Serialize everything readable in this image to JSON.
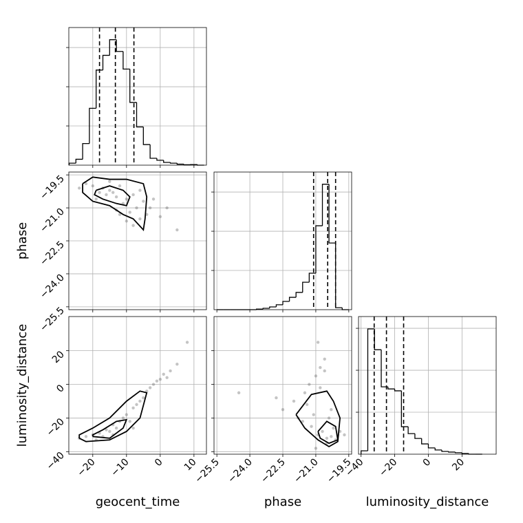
{
  "chart_data": [
    {
      "type": "histogram",
      "color": "#000000",
      "grid": true,
      "bins": [
        -27,
        -25,
        -23,
        -21,
        -19,
        -17,
        -15,
        -13,
        -11,
        -9,
        -7,
        -5,
        -3,
        -1,
        1,
        3,
        5,
        7,
        9,
        11,
        13
      ],
      "counts": [
        10,
        30,
        110,
        290,
        485,
        560,
        640,
        580,
        490,
        320,
        195,
        105,
        35,
        25,
        14,
        10,
        5,
        2,
        3,
        0
      ],
      "quantiles": [
        -18.0,
        -13.3,
        -7.8
      ],
      "xlim": [
        -27.1,
        13.7
      ],
      "xticks": [
        -20,
        -10,
        0,
        10
      ],
      "ylim": [
        0,
        702
      ],
      "yticks": [
        200,
        400,
        600
      ]
    },
    {
      "type": "histogram",
      "color": "#000000",
      "grid": true,
      "bins": [
        -25.5,
        -25.2,
        -24.9,
        -24.6,
        -24.3,
        -24.0,
        -23.7,
        -23.4,
        -23.1,
        -22.8,
        -22.5,
        -22.2,
        -21.9,
        -21.6,
        -21.3,
        -21.0,
        -20.7,
        -20.4,
        -20.1,
        -19.8,
        -19.5
      ],
      "counts": [
        0,
        0,
        0,
        0,
        0,
        0,
        3,
        7,
        14,
        25,
        42,
        63,
        88,
        140,
        186,
        428,
        640,
        340,
        10,
        0
      ],
      "quantiles": [
        -21.1,
        -20.46,
        -20.1
      ],
      "xlim": [
        -25.63,
        -19.37
      ],
      "xticks": [
        -25.5,
        -24.0,
        -22.5,
        -21.0,
        -19.5
      ],
      "ylim": [
        0,
        702
      ],
      "yticks": [
        200,
        400,
        600
      ]
    },
    {
      "type": "histogram",
      "color": "#000000",
      "grid": true,
      "show_xticklabels": true,
      "xlabel": "luminosity_distance",
      "bins": [
        -40,
        -36,
        -32,
        -28,
        -24,
        -20,
        -16,
        -12,
        -8,
        -4,
        0,
        4,
        8,
        12,
        16,
        20,
        24,
        28,
        32
      ],
      "counts": [
        16,
        597,
        498,
        321,
        311,
        302,
        131,
        98,
        75,
        49,
        30,
        20,
        13,
        10,
        7,
        3,
        0,
        0
      ],
      "quantiles": [
        -32.2,
        -24.9,
        -14.7
      ],
      "xlim": [
        -41.5,
        40.3
      ],
      "xticks": [
        {
          "value": -40,
          "label": "−40"
        },
        {
          "value": -20,
          "label": "−20"
        },
        0,
        20
      ],
      "ylim": [
        0,
        656
      ],
      "yticks": [
        200,
        400,
        600
      ]
    },
    {
      "type": "scatter",
      "color": "#000000",
      "grid": true,
      "show_yticklabels": true,
      "ylabel": "phase",
      "x": [
        -22,
        -20,
        -18,
        -17,
        -16,
        -15,
        -14,
        -13,
        -12,
        -11,
        -10,
        -9,
        -8,
        -7,
        -6,
        -5,
        -4,
        -3,
        -2,
        0,
        2,
        -19,
        -13,
        -10,
        -15,
        -8,
        -6,
        5,
        -24,
        -12
      ],
      "y": [
        -19.9,
        -20.0,
        -20.3,
        -20.1,
        -20.4,
        -20.2,
        -20.3,
        -20.5,
        -20.0,
        -20.8,
        -20.6,
        -21.2,
        -20.4,
        -21.0,
        -21.5,
        -20.7,
        -21.3,
        -21.0,
        -20.6,
        -21.4,
        -21.0,
        -20.6,
        -21.1,
        -21.6,
        -19.8,
        -21.8,
        -20.2,
        -22.0,
        -20.1,
        -21.3
      ],
      "contours": [
        {
          "x": [
            -23,
            -20,
            -15,
            -10,
            -5,
            -4,
            -4.5,
            -5,
            -8,
            -11,
            -15,
            -20,
            -23,
            -23
          ],
          "y": [
            -19.9,
            -19.6,
            -19.7,
            -19.7,
            -19.9,
            -20.5,
            -21.5,
            -22.0,
            -21.5,
            -21.3,
            -20.9,
            -20.7,
            -20.3,
            -19.9
          ]
        },
        {
          "x": [
            -19,
            -15,
            -11,
            -9,
            -10,
            -13,
            -17,
            -19.5,
            -19
          ],
          "y": [
            -20.2,
            -20.0,
            -20.2,
            -20.5,
            -20.9,
            -20.8,
            -20.6,
            -20.4,
            -20.2
          ]
        }
      ],
      "xlim": [
        -27.1,
        13.7
      ],
      "xticks": [
        -20,
        -10,
        0,
        10
      ],
      "ylim": [
        -25.63,
        -19.37
      ],
      "yticks": [
        {
          "value": -19.5,
          "label": "−19.5"
        },
        {
          "value": -21.0,
          "label": "−21.0"
        },
        {
          "value": -22.5,
          "label": "−22.5"
        },
        {
          "value": -24.0,
          "label": "−24.0"
        },
        {
          "value": -25.5,
          "label": "−25.5"
        }
      ]
    },
    {
      "type": "scatter",
      "color": "#000000",
      "grid": true,
      "show_xticklabels": true,
      "show_yticklabels": true,
      "xlabel": "geocent_time",
      "ylabel": "luminosity_distance",
      "x": [
        -24,
        -22,
        -20,
        -19,
        -18,
        -17,
        -16,
        -15,
        -14,
        -13,
        -12,
        -11,
        -10,
        -9,
        -8,
        -7,
        -6,
        -5,
        -4,
        -3,
        -2,
        -1,
        0,
        1,
        2,
        3,
        5,
        8,
        -14,
        -8
      ],
      "y": [
        -32,
        -31,
        -30,
        -33,
        -29,
        -31,
        -27,
        -28,
        -24,
        -26,
        -22,
        -20,
        -18,
        -22,
        -14,
        -12,
        -10,
        -8,
        -4,
        -2,
        0,
        2,
        3,
        6,
        4,
        8,
        12,
        25,
        -30,
        -26
      ],
      "contours": [
        {
          "x": [
            -24,
            -22,
            -15,
            -10,
            -6,
            -4,
            -6,
            -10,
            -15,
            -20,
            -24,
            -24
          ],
          "y": [
            -32,
            -34,
            -33,
            -28,
            -20,
            -5,
            -4,
            -10,
            -20,
            -26,
            -30,
            -32
          ]
        },
        {
          "x": [
            -20,
            -15,
            -11,
            -10,
            -13,
            -17,
            -20,
            -20
          ],
          "y": [
            -31,
            -32,
            -26,
            -21,
            -22,
            -27,
            -30,
            -31
          ]
        }
      ],
      "xlim": [
        -27.1,
        13.7
      ],
      "xticks": [
        {
          "value": -20,
          "label": "−20"
        },
        {
          "value": -10,
          "label": "−10"
        },
        0,
        10
      ],
      "ylim": [
        -41.5,
        40.3
      ],
      "yticks": [
        {
          "value": -40,
          "label": "−40"
        },
        {
          "value": -20,
          "label": "−20"
        },
        0,
        20
      ]
    },
    {
      "type": "scatter",
      "color": "#000000",
      "grid": true,
      "show_xticklabels": true,
      "xlabel": "phase",
      "x": [
        -22.5,
        -22,
        -21.8,
        -21.5,
        -21.3,
        -21.2,
        -21,
        -20.9,
        -20.8,
        -20.7,
        -20.6,
        -20.5,
        -20.4,
        -20.3,
        -20.2,
        -20.1,
        -20,
        -19.9,
        -21.4,
        -21.1,
        -20.8,
        -20.6,
        -24.5,
        -22.8,
        -20.5,
        -21.6,
        -20.3,
        -19.7,
        -21,
        -20.9
      ],
      "y": [
        -15,
        -10,
        -20,
        -5,
        0,
        -25,
        5,
        -30,
        10,
        -28,
        15,
        -32,
        -20,
        -31,
        -26,
        -33,
        -30,
        -28,
        -12,
        -18,
        -2,
        8,
        -5,
        -8,
        -35,
        -22,
        -15,
        -30,
        -38,
        25
      ],
      "contours": [
        {
          "x": [
            -21.9,
            -21.2,
            -20.5,
            -20.2,
            -19.9,
            -20.0,
            -20.4,
            -20.9,
            -21.5,
            -21.9
          ],
          "y": [
            -18,
            -6,
            -4,
            -10,
            -20,
            -34,
            -37,
            -33,
            -26,
            -18
          ]
        },
        {
          "x": [
            -20.9,
            -20.5,
            -20.1,
            -20.0,
            -20.4,
            -20.8,
            -20.9
          ],
          "y": [
            -28,
            -22,
            -25,
            -33,
            -35,
            -32,
            -28
          ]
        }
      ],
      "xlim": [
        -25.63,
        -19.37
      ],
      "xticks": [
        {
          "value": -25.5,
          "label": "−25.5"
        },
        {
          "value": -24.0,
          "label": "−24.0"
        },
        {
          "value": -22.5,
          "label": "−22.5"
        },
        {
          "value": -21.0,
          "label": "−21.0"
        },
        {
          "value": -19.5,
          "label": "−19.5"
        }
      ],
      "ylim": [
        -41.5,
        40.3
      ],
      "yticks": [
        -40,
        -20,
        0,
        20
      ]
    }
  ]
}
